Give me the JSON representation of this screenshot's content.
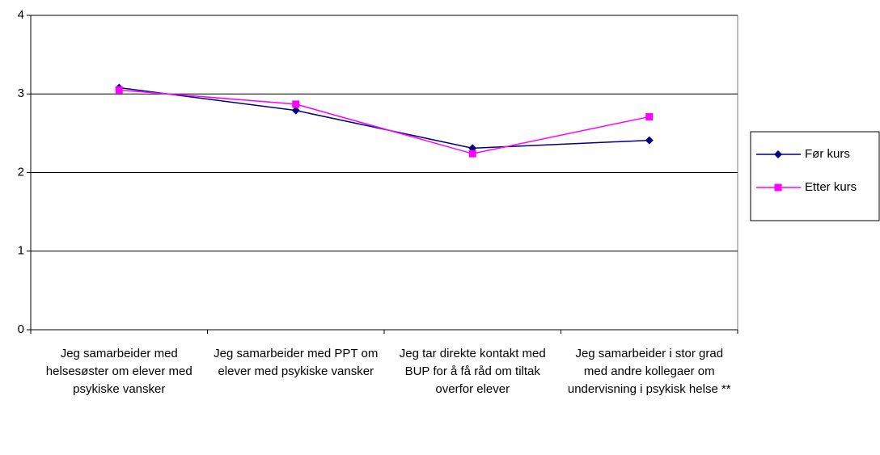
{
  "chart_data": {
    "type": "line",
    "categories": [
      "Jeg samarbeider med helsesøster om elever med psykiske vansker",
      "Jeg samarbeider med PPT om elever med psykiske vansker",
      "Jeg tar direkte kontakt med BUP for å få råd om tiltak overfor elever",
      "Jeg samarbeider i stor grad med andre kollegaer om undervisning i psykisk helse **"
    ],
    "series": [
      {
        "name": "Før kurs",
        "color": "#000080",
        "values": [
          3.08,
          2.79,
          2.31,
          2.41
        ]
      },
      {
        "name": "Etter kurs",
        "color": "#ff00ff",
        "values": [
          3.05,
          2.87,
          2.24,
          2.71
        ]
      }
    ],
    "ylim": [
      0,
      4
    ],
    "yticks": [
      0,
      1,
      2,
      3,
      4
    ],
    "grid": true,
    "legend": "right"
  }
}
